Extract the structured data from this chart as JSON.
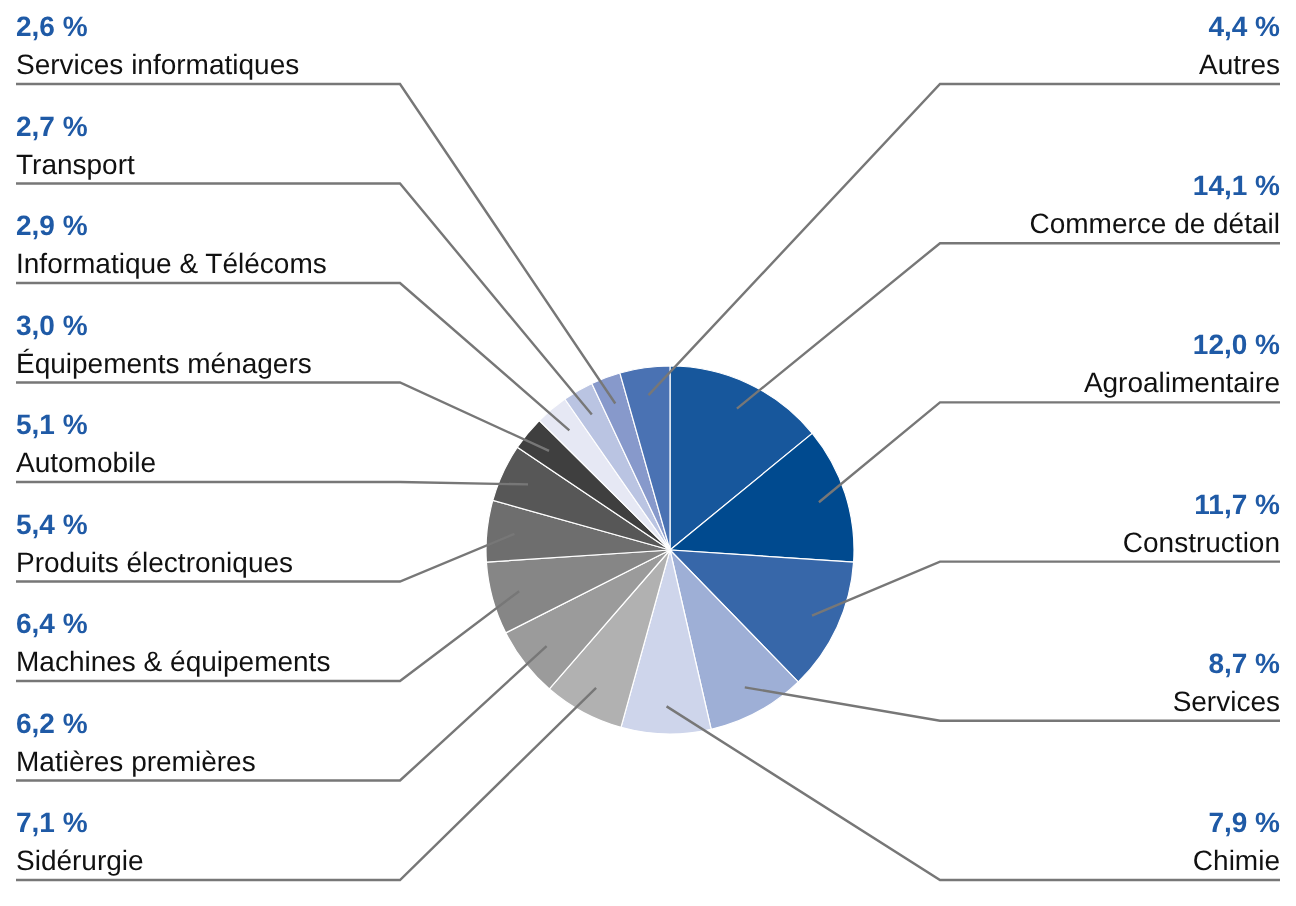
{
  "chart_data": {
    "type": "pie",
    "categories": [
      "Commerce de détail",
      "Agroalimentaire",
      "Construction",
      "Services",
      "Chimie",
      "Sidérurgie",
      "Matières premières",
      "Machines & équipements",
      "Produits électroniques",
      "Automobile",
      "Équipements ménagers",
      "Informatique & Télécoms",
      "Transport",
      "Services informatiques",
      "Autres"
    ],
    "values": [
      14.1,
      12.0,
      11.7,
      8.7,
      7.9,
      7.1,
      6.2,
      6.4,
      5.4,
      5.1,
      3.0,
      2.9,
      2.7,
      2.6,
      4.4
    ],
    "value_labels": [
      "14,1 %",
      "12,0 %",
      "11,7 %",
      "8,7 %",
      "7,9 %",
      "7,1 %",
      "6,2 %",
      "6,4 %",
      "5,4 %",
      "5,1 %",
      "3,0 %",
      "2,9 %",
      "2,7 %",
      "2,6 %",
      "4,4 %"
    ],
    "colors": [
      "#17579c",
      "#004a8f",
      "#3767a9",
      "#9eafd6",
      "#ced5eb",
      "#b1b1b1",
      "#9b9b9b",
      "#868686",
      "#6e6e6e",
      "#575757",
      "#3f3f3f",
      "#e6e8f4",
      "#bac4e2",
      "#8799cb",
      "#4a72b3"
    ]
  }
}
